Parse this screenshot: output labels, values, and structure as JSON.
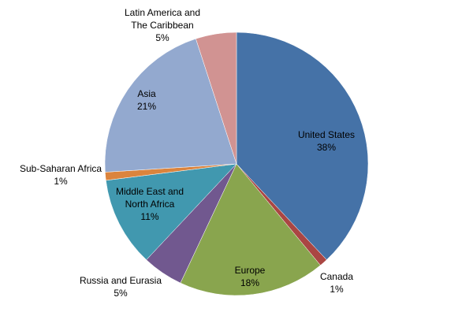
{
  "chart_data": {
    "type": "pie",
    "categories": [
      "United States",
      "Canada",
      "Europe",
      "Russia and Eurasia",
      "Middle East and North Africa",
      "Sub-Saharan Africa",
      "Asia",
      "Latin America and The Caribbean"
    ],
    "values": [
      38,
      1,
      18,
      5,
      11,
      1,
      21,
      5
    ],
    "value_labels": [
      "38%",
      "1%",
      "18%",
      "5%",
      "11%",
      "1%",
      "21%",
      "5%"
    ],
    "colors": [
      "#4572a7",
      "#aa4643",
      "#89a54e",
      "#71588f",
      "#4198af",
      "#db843d",
      "#93a9cf",
      "#d19392"
    ]
  }
}
